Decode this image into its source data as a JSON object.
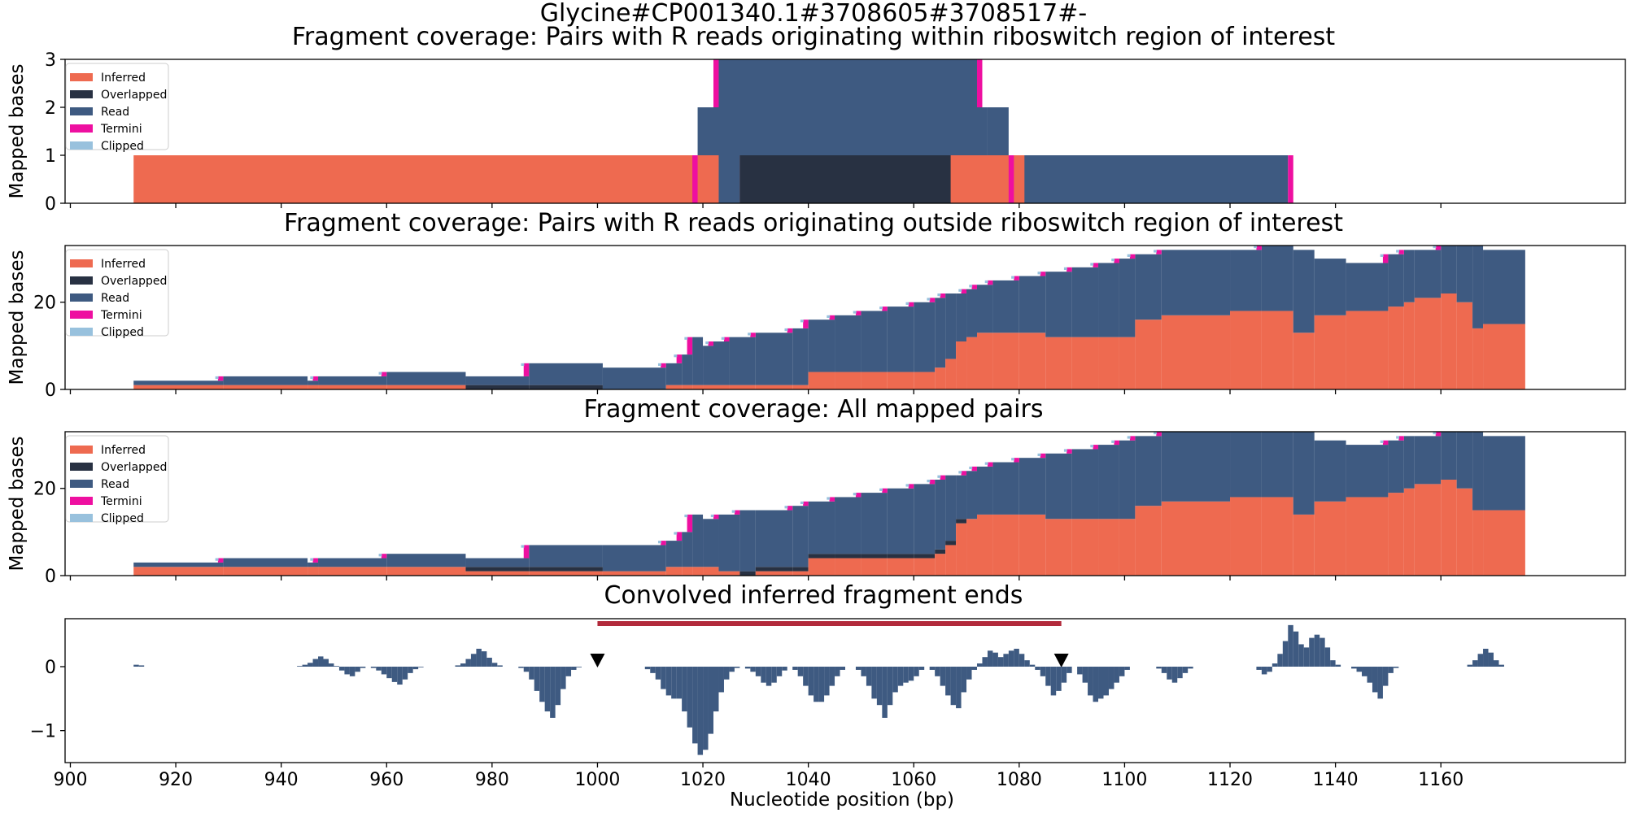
{
  "figure": {
    "title": "Glycine#CP001340.1#3708605#3708517#-"
  },
  "colors": {
    "inferred": "#ee6a50",
    "overlapped": "#283142",
    "read": "#3e5a81",
    "termini": "#ee0fa0",
    "clipped": "#98c1dd",
    "region_bar": "#b22a3b",
    "marker": "#000000"
  },
  "legend": {
    "placement": "upper-left",
    "entries": [
      "Inferred",
      "Overlapped",
      "Read",
      "Termini",
      "Clipped"
    ]
  },
  "xaxis": {
    "label": "Nucleotide position (bp)",
    "ticks": [
      900,
      920,
      940,
      960,
      980,
      1000,
      1020,
      1040,
      1060,
      1080,
      1100,
      1120,
      1140,
      1160
    ],
    "range": [
      899,
      1195
    ]
  },
  "chart_data": [
    {
      "type": "area",
      "title": "Fragment coverage: Pairs with R reads originating within riboswitch region of interest",
      "ylabel": "Mapped bases",
      "ylim": [
        0,
        3
      ],
      "yticks": [
        0,
        1,
        2,
        3
      ],
      "legend": true,
      "series": {
        "inferred": [
          [
            912,
            1,
            1023
          ],
          [
            1067,
            1,
            1081
          ],
          [
            1023,
            1,
            1100
          ]
        ],
        "overlapped": [
          [
            1027,
            1,
            1067
          ],
          [
            1067,
            2,
            1070
          ]
        ],
        "read": [
          [
            1023,
            1,
            1027
          ],
          [
            1081,
            1,
            1131
          ],
          [
            1019,
            2,
            1074
          ],
          [
            1074,
            2,
            1078
          ],
          [
            1023,
            3,
            1072
          ]
        ],
        "termini": [
          [
            1018,
            1,
            1019
          ],
          [
            1078,
            1,
            1079
          ],
          [
            1131,
            1,
            1132
          ],
          [
            1022,
            3,
            1023
          ],
          [
            1072,
            3,
            1073
          ]
        ],
        "clipped": []
      }
    },
    {
      "type": "area",
      "title": "Fragment coverage: Pairs with R reads originating outside riboswitch region of interest",
      "ylabel": "Mapped bases",
      "ylim": [
        0,
        33
      ],
      "yticks": [
        0,
        20
      ],
      "legend": true,
      "steps": [
        {
          "x": 912,
          "inf": 1,
          "ovl": 0,
          "tot": 2
        },
        {
          "x": 929,
          "inf": 1,
          "ovl": 0,
          "tot": 3
        },
        {
          "x": 945,
          "inf": 1,
          "ovl": 0,
          "tot": 2
        },
        {
          "x": 947,
          "inf": 1,
          "ovl": 0,
          "tot": 3
        },
        {
          "x": 960,
          "inf": 1,
          "ovl": 0,
          "tot": 4
        },
        {
          "x": 975,
          "inf": 0,
          "ovl": 1,
          "tot": 3
        },
        {
          "x": 987,
          "inf": 0,
          "ovl": 1,
          "tot": 6
        },
        {
          "x": 1001,
          "inf": 0,
          "ovl": 0,
          "tot": 5
        },
        {
          "x": 1013,
          "inf": 1,
          "ovl": 0,
          "tot": 6
        },
        {
          "x": 1016,
          "inf": 1,
          "ovl": 0,
          "tot": 8
        },
        {
          "x": 1018,
          "inf": 1,
          "ovl": 0,
          "tot": 12
        },
        {
          "x": 1020,
          "inf": 1,
          "ovl": 0,
          "tot": 10
        },
        {
          "x": 1022,
          "inf": 1,
          "ovl": 0,
          "tot": 11
        },
        {
          "x": 1025,
          "inf": 1,
          "ovl": 0,
          "tot": 12
        },
        {
          "x": 1030,
          "inf": 1,
          "ovl": 0,
          "tot": 13
        },
        {
          "x": 1037,
          "inf": 1,
          "ovl": 0,
          "tot": 14
        },
        {
          "x": 1040,
          "inf": 4,
          "ovl": 0,
          "tot": 16
        },
        {
          "x": 1045,
          "inf": 4,
          "ovl": 0,
          "tot": 17
        },
        {
          "x": 1050,
          "inf": 4,
          "ovl": 0,
          "tot": 18
        },
        {
          "x": 1055,
          "inf": 4,
          "ovl": 0,
          "tot": 19
        },
        {
          "x": 1060,
          "inf": 4,
          "ovl": 0,
          "tot": 20
        },
        {
          "x": 1064,
          "inf": 5,
          "ovl": 0,
          "tot": 21
        },
        {
          "x": 1066,
          "inf": 7,
          "ovl": 0,
          "tot": 22
        },
        {
          "x": 1068,
          "inf": 11,
          "ovl": 0,
          "tot": 22
        },
        {
          "x": 1070,
          "inf": 12,
          "ovl": 0,
          "tot": 23
        },
        {
          "x": 1072,
          "inf": 13,
          "ovl": 0,
          "tot": 24
        },
        {
          "x": 1075,
          "inf": 13,
          "ovl": 0,
          "tot": 25
        },
        {
          "x": 1080,
          "inf": 13,
          "ovl": 0,
          "tot": 26
        },
        {
          "x": 1085,
          "inf": 12,
          "ovl": 0,
          "tot": 27
        },
        {
          "x": 1090,
          "inf": 12,
          "ovl": 0,
          "tot": 28
        },
        {
          "x": 1095,
          "inf": 12,
          "ovl": 0,
          "tot": 29
        },
        {
          "x": 1099,
          "inf": 12,
          "ovl": 0,
          "tot": 30
        },
        {
          "x": 1102,
          "inf": 16,
          "ovl": 0,
          "tot": 31
        },
        {
          "x": 1107,
          "inf": 17,
          "ovl": 0,
          "tot": 32
        },
        {
          "x": 1120,
          "inf": 18,
          "ovl": 0,
          "tot": 32
        },
        {
          "x": 1126,
          "inf": 18,
          "ovl": 0,
          "tot": 33
        },
        {
          "x": 1132,
          "inf": 13,
          "ovl": 0,
          "tot": 32
        },
        {
          "x": 1136,
          "inf": 17,
          "ovl": 0,
          "tot": 30
        },
        {
          "x": 1142,
          "inf": 18,
          "ovl": 0,
          "tot": 29
        },
        {
          "x": 1150,
          "inf": 19,
          "ovl": 0,
          "tot": 31
        },
        {
          "x": 1153,
          "inf": 20,
          "ovl": 0,
          "tot": 32
        },
        {
          "x": 1155,
          "inf": 21,
          "ovl": 0,
          "tot": 32
        },
        {
          "x": 1160,
          "inf": 22,
          "ovl": 0,
          "tot": 33
        },
        {
          "x": 1163,
          "inf": 20,
          "ovl": 0,
          "tot": 33
        },
        {
          "x": 1166,
          "inf": 14,
          "ovl": 0,
          "tot": 33
        },
        {
          "x": 1168,
          "inf": 15,
          "ovl": 0,
          "tot": 32
        },
        {
          "x": 1176,
          "inf": 0,
          "ovl": 0,
          "tot": 0
        }
      ]
    },
    {
      "type": "area",
      "title": "Fragment coverage: All mapped pairs",
      "ylabel": "Mapped bases",
      "ylim": [
        0,
        33
      ],
      "yticks": [
        0,
        20
      ],
      "legend": true,
      "steps": [
        {
          "x": 912,
          "inf": 2,
          "ovl": 0,
          "tot": 3
        },
        {
          "x": 929,
          "inf": 2,
          "ovl": 0,
          "tot": 4
        },
        {
          "x": 945,
          "inf": 2,
          "ovl": 0,
          "tot": 3
        },
        {
          "x": 947,
          "inf": 2,
          "ovl": 0,
          "tot": 4
        },
        {
          "x": 960,
          "inf": 2,
          "ovl": 0,
          "tot": 5
        },
        {
          "x": 975,
          "inf": 1,
          "ovl": 1,
          "tot": 4
        },
        {
          "x": 987,
          "inf": 1,
          "ovl": 1,
          "tot": 7
        },
        {
          "x": 1001,
          "inf": 1,
          "ovl": 0,
          "tot": 7
        },
        {
          "x": 1013,
          "inf": 2,
          "ovl": 0,
          "tot": 8
        },
        {
          "x": 1016,
          "inf": 2,
          "ovl": 0,
          "tot": 10
        },
        {
          "x": 1018,
          "inf": 2,
          "ovl": 0,
          "tot": 14
        },
        {
          "x": 1020,
          "inf": 2,
          "ovl": 0,
          "tot": 13
        },
        {
          "x": 1023,
          "inf": 1,
          "ovl": 0,
          "tot": 14
        },
        {
          "x": 1027,
          "inf": 0,
          "ovl": 1,
          "tot": 15
        },
        {
          "x": 1030,
          "inf": 1,
          "ovl": 1,
          "tot": 15
        },
        {
          "x": 1037,
          "inf": 1,
          "ovl": 1,
          "tot": 16
        },
        {
          "x": 1040,
          "inf": 4,
          "ovl": 1,
          "tot": 17
        },
        {
          "x": 1045,
          "inf": 4,
          "ovl": 1,
          "tot": 18
        },
        {
          "x": 1050,
          "inf": 4,
          "ovl": 1,
          "tot": 19
        },
        {
          "x": 1055,
          "inf": 4,
          "ovl": 1,
          "tot": 20
        },
        {
          "x": 1060,
          "inf": 4,
          "ovl": 1,
          "tot": 21
        },
        {
          "x": 1064,
          "inf": 5,
          "ovl": 1,
          "tot": 22
        },
        {
          "x": 1066,
          "inf": 7,
          "ovl": 1,
          "tot": 23
        },
        {
          "x": 1068,
          "inf": 12,
          "ovl": 1,
          "tot": 23
        },
        {
          "x": 1070,
          "inf": 13,
          "ovl": 0,
          "tot": 24
        },
        {
          "x": 1072,
          "inf": 14,
          "ovl": 0,
          "tot": 25
        },
        {
          "x": 1075,
          "inf": 14,
          "ovl": 0,
          "tot": 26
        },
        {
          "x": 1080,
          "inf": 14,
          "ovl": 0,
          "tot": 27
        },
        {
          "x": 1085,
          "inf": 13,
          "ovl": 0,
          "tot": 28
        },
        {
          "x": 1090,
          "inf": 13,
          "ovl": 0,
          "tot": 29
        },
        {
          "x": 1095,
          "inf": 13,
          "ovl": 0,
          "tot": 30
        },
        {
          "x": 1099,
          "inf": 13,
          "ovl": 0,
          "tot": 31
        },
        {
          "x": 1102,
          "inf": 16,
          "ovl": 0,
          "tot": 32
        },
        {
          "x": 1107,
          "inf": 17,
          "ovl": 0,
          "tot": 33
        },
        {
          "x": 1120,
          "inf": 18,
          "ovl": 0,
          "tot": 33
        },
        {
          "x": 1126,
          "inf": 18,
          "ovl": 0,
          "tot": 33
        },
        {
          "x": 1132,
          "inf": 14,
          "ovl": 0,
          "tot": 33
        },
        {
          "x": 1136,
          "inf": 17,
          "ovl": 0,
          "tot": 31
        },
        {
          "x": 1142,
          "inf": 18,
          "ovl": 0,
          "tot": 30
        },
        {
          "x": 1150,
          "inf": 19,
          "ovl": 0,
          "tot": 31
        },
        {
          "x": 1153,
          "inf": 20,
          "ovl": 0,
          "tot": 32
        },
        {
          "x": 1155,
          "inf": 21,
          "ovl": 0,
          "tot": 32
        },
        {
          "x": 1160,
          "inf": 22,
          "ovl": 0,
          "tot": 33
        },
        {
          "x": 1163,
          "inf": 20,
          "ovl": 0,
          "tot": 33
        },
        {
          "x": 1166,
          "inf": 15,
          "ovl": 0,
          "tot": 33
        },
        {
          "x": 1168,
          "inf": 15,
          "ovl": 0,
          "tot": 32
        },
        {
          "x": 1176,
          "inf": 0,
          "ovl": 0,
          "tot": 0
        }
      ]
    },
    {
      "type": "bar",
      "title": "Convolved inferred fragment ends",
      "ylabel": "",
      "ylim": [
        -1.5,
        0.75
      ],
      "yticks": [
        -1,
        0
      ],
      "legend": false,
      "region_of_interest": [
        1000,
        1088
      ],
      "markers_x": [
        1000,
        1088
      ],
      "bumps": [
        {
          "start": 912,
          "values": [
            0.03,
            0.02
          ]
        },
        {
          "start": 943,
          "values": [
            0.01,
            0.03,
            0.06,
            0.12,
            0.16,
            0.12,
            0.05,
            0.01
          ]
        },
        {
          "start": 951,
          "values": [
            -0.06,
            -0.12,
            -0.15,
            -0.08,
            -0.02
          ]
        },
        {
          "start": 957,
          "values": [
            -0.02,
            -0.06,
            -0.12,
            -0.18,
            -0.24,
            -0.28,
            -0.2,
            -0.1,
            -0.04,
            -0.01
          ]
        },
        {
          "start": 973,
          "values": [
            0.02,
            0.05,
            0.12,
            0.2,
            0.28,
            0.24,
            0.14,
            0.06,
            0.02
          ]
        },
        {
          "start": 985,
          "values": [
            -0.02,
            -0.08,
            -0.2,
            -0.38,
            -0.55,
            -0.7,
            -0.8,
            -0.6,
            -0.35,
            -0.15,
            -0.05,
            -0.01
          ]
        },
        {
          "start": 1009,
          "values": [
            -0.04,
            -0.1,
            -0.2,
            -0.35,
            -0.45,
            -0.5,
            -0.5,
            -0.7,
            -0.95,
            -1.2,
            -1.38,
            -1.3,
            -1.05,
            -0.7,
            -0.4,
            -0.2,
            -0.08,
            -0.02
          ]
        },
        {
          "start": 1028,
          "values": [
            -0.03,
            -0.08,
            -0.15,
            -0.25,
            -0.3,
            -0.25,
            -0.15,
            -0.06
          ]
        },
        {
          "start": 1037,
          "values": [
            -0.05,
            -0.15,
            -0.3,
            -0.45,
            -0.55,
            -0.55,
            -0.45,
            -0.3,
            -0.15,
            -0.05
          ]
        },
        {
          "start": 1049,
          "values": [
            -0.05,
            -0.15,
            -0.3,
            -0.5,
            -0.6,
            -0.8,
            -0.6,
            -0.4,
            -0.3,
            -0.25,
            -0.22,
            -0.15,
            -0.05
          ]
        },
        {
          "start": 1063,
          "values": [
            -0.05,
            -0.15,
            -0.3,
            -0.45,
            -0.6,
            -0.65,
            -0.4,
            -0.2,
            -0.05
          ]
        },
        {
          "start": 1072,
          "values": [
            0.05,
            0.15,
            0.25,
            0.22,
            0.15,
            0.2,
            0.25,
            0.28,
            0.2,
            0.1,
            0.03
          ]
        },
        {
          "start": 1083,
          "values": [
            -0.05,
            -0.15,
            -0.3,
            -0.45,
            -0.38,
            -0.25,
            -0.1,
            0.0,
            -0.12,
            -0.25,
            -0.45,
            -0.55,
            -0.5,
            -0.45,
            -0.35,
            -0.25,
            -0.15,
            -0.05
          ]
        },
        {
          "start": 1106,
          "values": [
            -0.03,
            -0.1,
            -0.2,
            -0.25,
            -0.18,
            -0.1,
            -0.03
          ]
        },
        {
          "start": 1125,
          "values": [
            -0.05,
            -0.12,
            -0.08,
            0.05,
            0.2,
            0.4,
            0.65,
            0.55,
            0.35,
            0.3,
            0.45,
            0.5,
            0.45,
            0.3,
            0.1,
            0.03
          ]
        },
        {
          "start": 1143,
          "values": [
            -0.03,
            -0.08,
            -0.15,
            -0.25,
            -0.4,
            -0.5,
            -0.3,
            -0.1,
            -0.02
          ]
        },
        {
          "start": 1165,
          "values": [
            0.03,
            0.1,
            0.2,
            0.28,
            0.22,
            0.1,
            0.03
          ]
        }
      ],
      "xlabel": "Nucleotide position (bp)"
    }
  ]
}
